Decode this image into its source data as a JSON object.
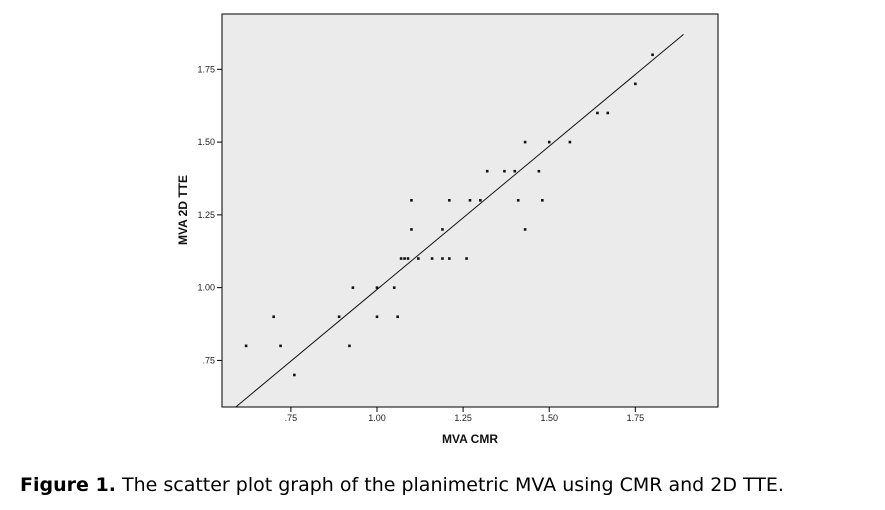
{
  "chart_data": {
    "type": "scatter",
    "xlabel": "MVA CMR",
    "ylabel": "MVA 2D TTE",
    "xlim": [
      0.55,
      1.99
    ],
    "ylim": [
      0.59,
      1.94
    ],
    "xticks": [
      0.75,
      1.0,
      1.25,
      1.5,
      1.75
    ],
    "xtick_labels": [
      ".75",
      "1.00",
      "1.25",
      "1.50",
      "1.75"
    ],
    "yticks": [
      0.75,
      1.0,
      1.25,
      1.5,
      1.75
    ],
    "ytick_labels": [
      ".75",
      "1.00",
      "1.25",
      "1.50",
      "1.75"
    ],
    "grid": false,
    "plot_background": "#ebebeb",
    "points": [
      {
        "x": 0.62,
        "y": 0.8
      },
      {
        "x": 0.7,
        "y": 0.9
      },
      {
        "x": 0.72,
        "y": 0.8
      },
      {
        "x": 0.76,
        "y": 0.7
      },
      {
        "x": 0.89,
        "y": 0.9
      },
      {
        "x": 0.92,
        "y": 0.8
      },
      {
        "x": 0.93,
        "y": 1.0
      },
      {
        "x": 1.0,
        "y": 0.9
      },
      {
        "x": 1.0,
        "y": 1.0
      },
      {
        "x": 1.05,
        "y": 1.0
      },
      {
        "x": 1.06,
        "y": 0.9
      },
      {
        "x": 1.07,
        "y": 1.1
      },
      {
        "x": 1.08,
        "y": 1.1
      },
      {
        "x": 1.09,
        "y": 1.1
      },
      {
        "x": 1.1,
        "y": 1.3
      },
      {
        "x": 1.1,
        "y": 1.2
      },
      {
        "x": 1.12,
        "y": 1.1
      },
      {
        "x": 1.16,
        "y": 1.1
      },
      {
        "x": 1.19,
        "y": 1.1
      },
      {
        "x": 1.19,
        "y": 1.2
      },
      {
        "x": 1.21,
        "y": 1.1
      },
      {
        "x": 1.21,
        "y": 1.3
      },
      {
        "x": 1.26,
        "y": 1.1
      },
      {
        "x": 1.27,
        "y": 1.3
      },
      {
        "x": 1.3,
        "y": 1.3
      },
      {
        "x": 1.32,
        "y": 1.4
      },
      {
        "x": 1.37,
        "y": 1.4
      },
      {
        "x": 1.4,
        "y": 1.4
      },
      {
        "x": 1.41,
        "y": 1.3
      },
      {
        "x": 1.43,
        "y": 1.5
      },
      {
        "x": 1.43,
        "y": 1.2
      },
      {
        "x": 1.47,
        "y": 1.4
      },
      {
        "x": 1.48,
        "y": 1.3
      },
      {
        "x": 1.5,
        "y": 1.5
      },
      {
        "x": 1.56,
        "y": 1.5
      },
      {
        "x": 1.64,
        "y": 1.6
      },
      {
        "x": 1.67,
        "y": 1.6
      },
      {
        "x": 1.75,
        "y": 1.7
      },
      {
        "x": 1.8,
        "y": 1.8
      }
    ],
    "fit_line": {
      "x1": 0.59,
      "y1": 0.59,
      "x2": 1.89,
      "y2": 1.87
    }
  },
  "caption": {
    "label": "Figure 1.",
    "text": " The scatter plot graph of the planimetric MVA using CMR and 2D TTE."
  }
}
